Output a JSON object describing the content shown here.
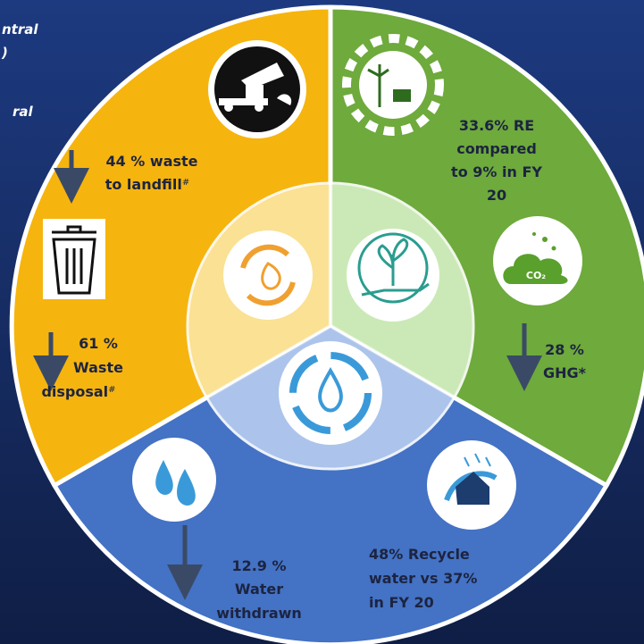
{
  "header_fragments": [
    "ntral",
    ")",
    "ral"
  ],
  "waste": {
    "landfill": {
      "lines": [
        "44 % waste",
        "to landfill"
      ],
      "mark": "#"
    },
    "disposal": {
      "lines": [
        "61 %",
        "Waste",
        "disposal"
      ],
      "mark": "#"
    }
  },
  "energy": {
    "renewable": {
      "lines": [
        "33.6% RE",
        "compared",
        "to 9% in FY",
        "20"
      ]
    },
    "ghg": {
      "lines": [
        "28 %",
        "GHG*"
      ]
    },
    "co2_icon": "CO₂"
  },
  "water": {
    "withdrawn": {
      "lines": [
        "12.9 %",
        "Water",
        "withdrawn"
      ]
    },
    "recycle": {
      "lines": [
        "48% Recycle",
        "water vs 37%",
        "in FY 20"
      ]
    }
  }
}
